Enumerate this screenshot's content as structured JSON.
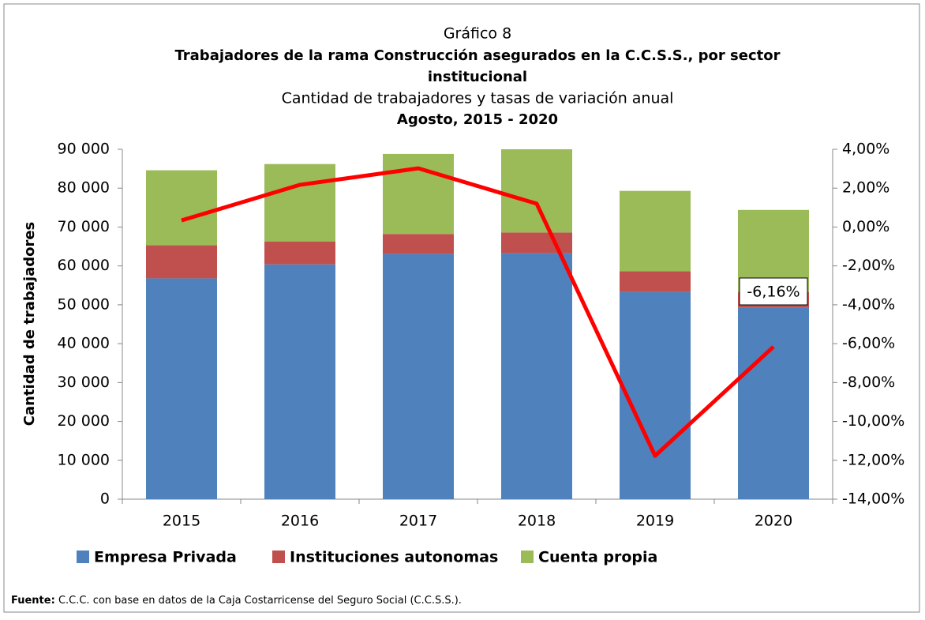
{
  "chart_data": {
    "type": "bar",
    "pretitle": "Gráfico 8",
    "title": [
      "Trabajadores de la rama Construcción asegurados en la C.C.S.S., por sector",
      "institucional"
    ],
    "subtitle": "Cantidad de trabajadores y tasas de variación anual",
    "period": "Agosto, 2015 - 2020",
    "ylabel": "Cantidad de trabajadores",
    "categories": [
      "2015",
      "2016",
      "2017",
      "2018",
      "2019",
      "2020"
    ],
    "series": [
      {
        "name": "Empresa Privada",
        "color": "#4f81bd",
        "values": [
          56800,
          60400,
          63100,
          63300,
          53300,
          49300
        ]
      },
      {
        "name": "Instituciones autonomas",
        "color": "#c0504d",
        "values": [
          8500,
          5900,
          5100,
          5300,
          5300,
          4000
        ]
      },
      {
        "name": "Cuenta propia",
        "color": "#9bbb59",
        "values": [
          19300,
          19900,
          20600,
          21400,
          20700,
          21100
        ]
      },
      {
        "type": "line",
        "axis": "y2",
        "color": "#ff0000",
        "values": [
          0.34,
          2.17,
          3.02,
          1.2,
          -11.77,
          -6.16
        ],
        "value_labels": [
          null,
          null,
          null,
          null,
          null,
          "-6,16%"
        ]
      }
    ],
    "ylim": [
      0,
      90000
    ],
    "yticks": [
      0,
      {
        "value": 10000,
        "label": "10 000"
      },
      {
        "value": 20000,
        "label": "20 000"
      },
      {
        "value": 30000,
        "label": "30 000"
      },
      {
        "value": 40000,
        "label": "40 000"
      },
      {
        "value": 50000,
        "label": "50 000"
      },
      {
        "value": 60000,
        "label": "60 000"
      },
      {
        "value": 70000,
        "label": "70 000"
      },
      {
        "value": 80000,
        "label": "80 000"
      },
      {
        "value": 90000,
        "label": "90 000"
      }
    ],
    "y2lim": [
      -14,
      4
    ],
    "y2ticks": [
      {
        "value": -14,
        "label": "-14,00%"
      },
      {
        "value": -12,
        "label": "-12,00%"
      },
      {
        "value": -10,
        "label": "-10,00%"
      },
      {
        "value": -8,
        "label": "-8,00%"
      },
      {
        "value": -6,
        "label": "-6,00%"
      },
      {
        "value": -4,
        "label": "-4,00%"
      },
      {
        "value": -2,
        "label": "-2,00%"
      },
      {
        "value": 0,
        "label": "0,00%"
      },
      {
        "value": 2,
        "label": "2,00%"
      },
      {
        "value": 4,
        "label": "4,00%"
      }
    ],
    "legend": "bottom",
    "source_label": "Fuente:",
    "source": "C.C.C. con base en datos de la Caja Costarricense del Seguro Social (C.C.S.S.)."
  }
}
